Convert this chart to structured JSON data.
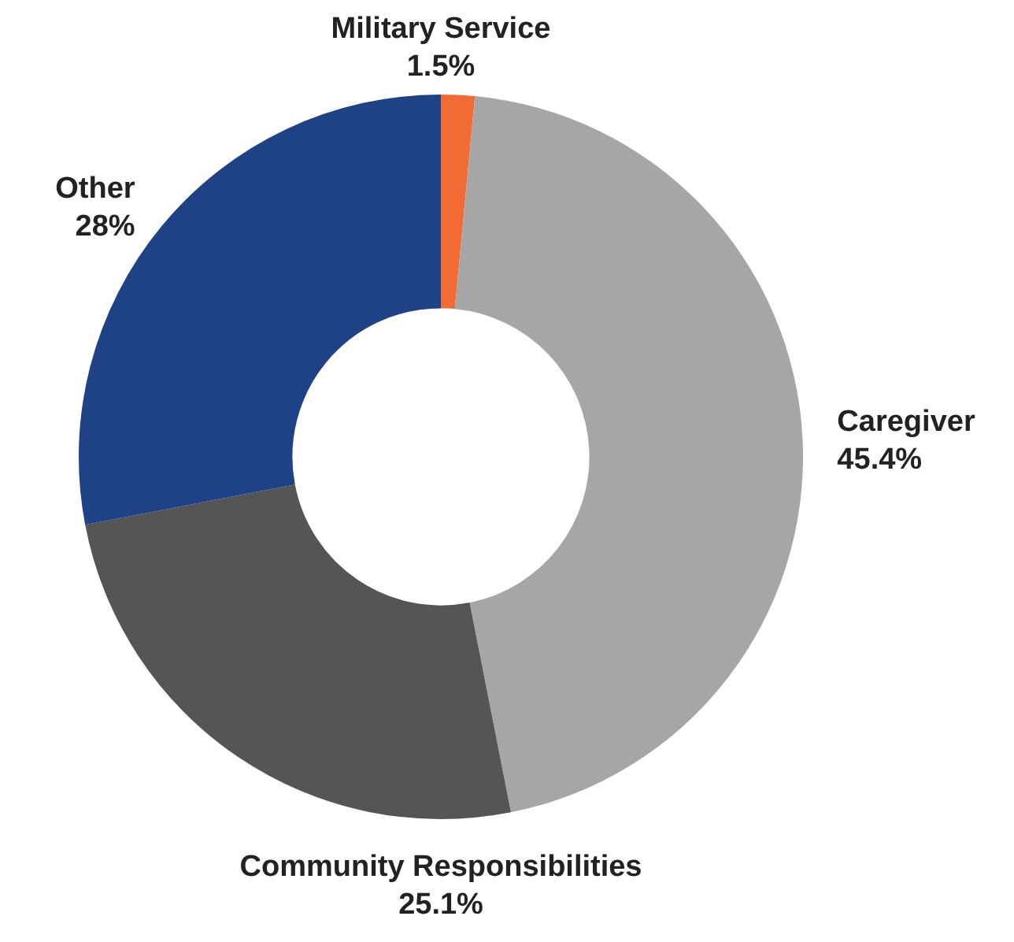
{
  "chart_data": {
    "type": "donut",
    "categories": [
      "Military Service",
      "Caregiver",
      "Community Responsibilities",
      "Other"
    ],
    "values": [
      1.5,
      45.4,
      25.1,
      28
    ],
    "value_labels": [
      "1.5%",
      "45.4%",
      "25.1%",
      "28%"
    ],
    "colors": [
      "#f26b35",
      "#a6a6a6",
      "#555555",
      "#1f4286"
    ],
    "legend": false
  }
}
